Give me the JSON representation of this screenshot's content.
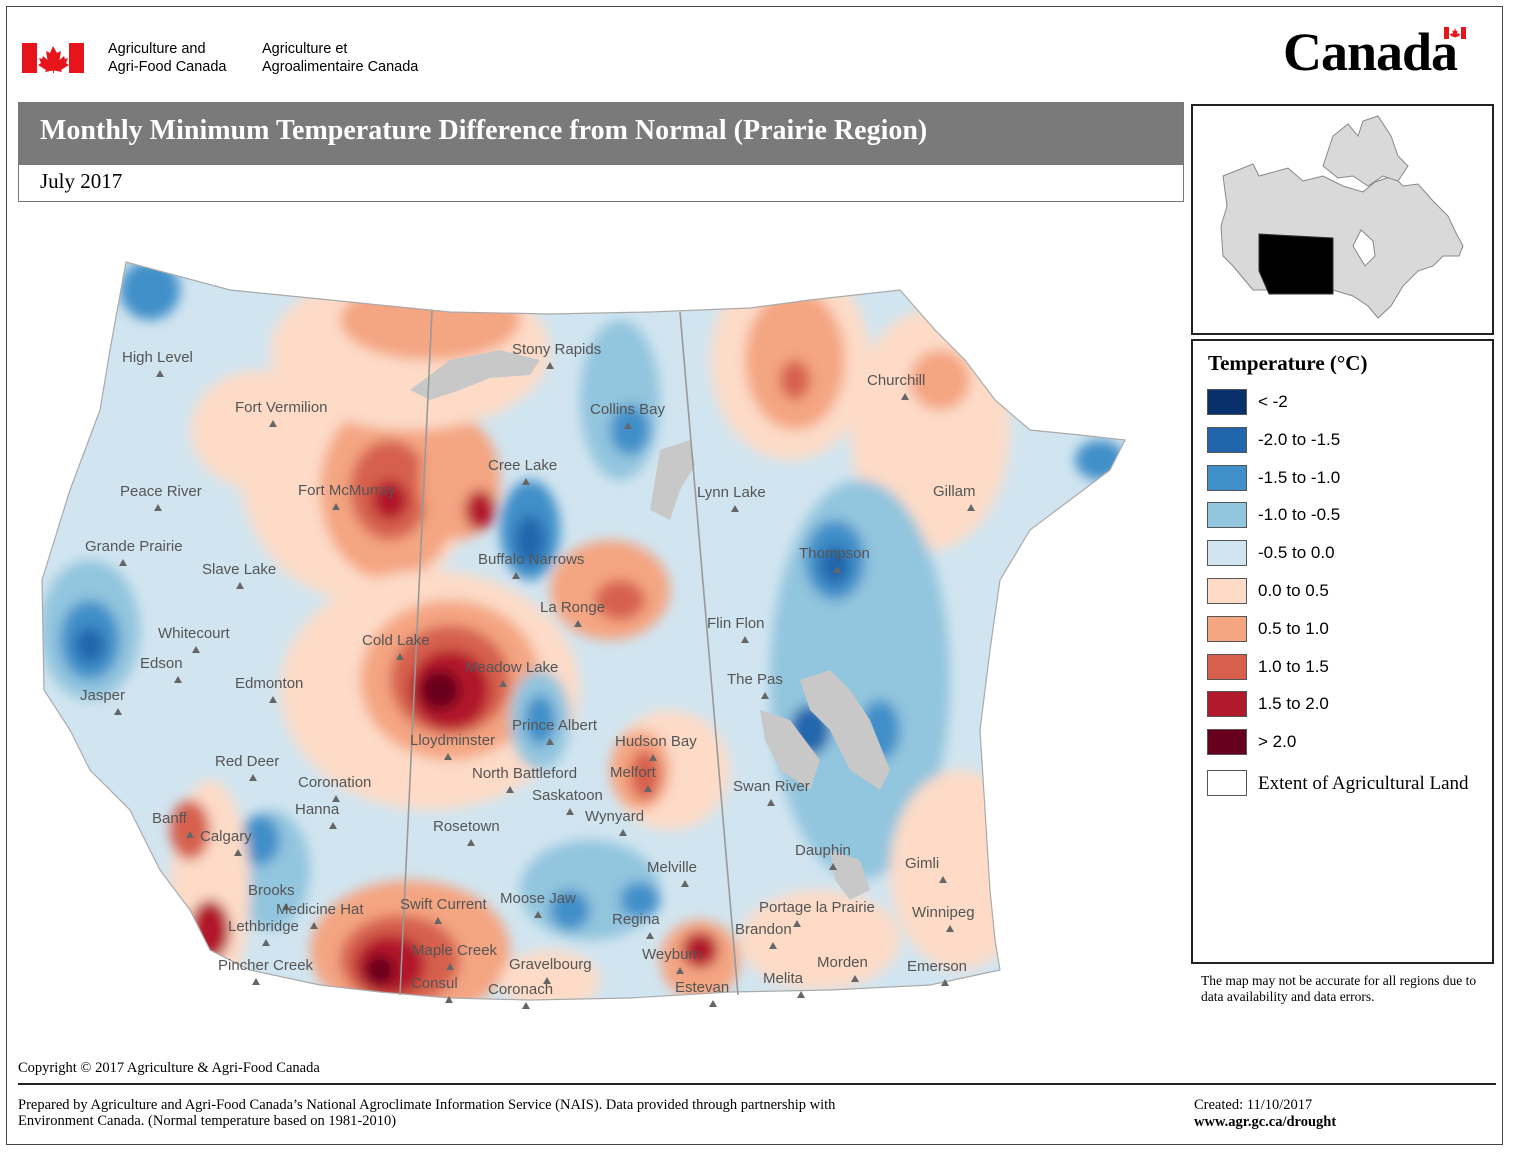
{
  "header": {
    "dept_en_line1": "Agriculture and",
    "dept_en_line2": "Agri-Food Canada",
    "dept_fr_line1": "Agriculture et",
    "dept_fr_line2": "Agroalimentaire Canada",
    "wordmark": "Canada"
  },
  "title": "Monthly Minimum Temperature Difference from Normal (Prairie Region)",
  "subtitle": "July 2017",
  "legend": {
    "title": "Temperature (°C)",
    "items": [
      {
        "label": "< -2",
        "color": "#08306b"
      },
      {
        "label": "-2.0 to -1.5",
        "color": "#2166ac"
      },
      {
        "label": "-1.5 to -1.0",
        "color": "#3f8fc9"
      },
      {
        "label": "-1.0 to -0.5",
        "color": "#92c5de"
      },
      {
        "label": "-0.5 to 0.0",
        "color": "#d1e5f0"
      },
      {
        "label": "0.0 to 0.5",
        "color": "#fddbc7"
      },
      {
        "label": "0.5 to 1.0",
        "color": "#f4a582"
      },
      {
        "label": "1.0 to 1.5",
        "color": "#d6604d"
      },
      {
        "label": "1.5 to 2.0",
        "color": "#b2182b"
      },
      {
        "label": "> 2.0",
        "color": "#67001f"
      },
      {
        "label": "Extent of Agricultural Land",
        "color": "#ffffff"
      }
    ]
  },
  "disclaimer": "The map may not be accurate for all regions due to data availability and data errors.",
  "cities": {
    "high_level": "High Level",
    "fort_vermilion": "Fort Vermilion",
    "peace_river": "Peace River",
    "fort_mcmurray": "Fort McMurray",
    "grande_prairie": "Grande Prairie",
    "slave_lake": "Slave Lake",
    "whitecourt": "Whitecourt",
    "edson": "Edson",
    "jasper": "Jasper",
    "edmonton": "Edmonton",
    "red_deer": "Red Deer",
    "coronation": "Coronation",
    "hanna": "Hanna",
    "banff": "Banff",
    "calgary": "Calgary",
    "brooks": "Brooks",
    "medicine_hat": "Medicine Hat",
    "lethbridge": "Lethbridge",
    "pincher_creek": "Pincher Creek",
    "stony_rapids": "Stony Rapids",
    "collins_bay": "Collins Bay",
    "cree_lake": "Cree Lake",
    "buffalo_narrows": "Buffalo Narrows",
    "la_ronge": "La Ronge",
    "cold_lake": "Cold Lake",
    "meadow_lake": "Meadow Lake",
    "lloydminster": "Lloydminster",
    "north_battleford": "North Battleford",
    "prince_albert": "Prince Albert",
    "hudson_bay": "Hudson Bay",
    "melfort": "Melfort",
    "saskatoon": "Saskatoon",
    "wynyard": "Wynyard",
    "rosetown": "Rosetown",
    "swift_current": "Swift Current",
    "moose_jaw": "Moose Jaw",
    "regina": "Regina",
    "melville": "Melville",
    "maple_creek": "Maple Creek",
    "consul": "Consul",
    "gravelbourg": "Gravelbourg",
    "coronach": "Coronach",
    "weyburn": "Weyburn",
    "estevan": "Estevan",
    "churchill": "Churchill",
    "lynn_lake": "Lynn Lake",
    "gillam": "Gillam",
    "thompson": "Thompson",
    "flin_flon": "Flin Flon",
    "the_pas": "The Pas",
    "swan_river": "Swan River",
    "dauphin": "Dauphin",
    "gimli": "Gimli",
    "portage_la_prairie": "Portage la Prairie",
    "winnipeg": "Winnipeg",
    "brandon": "Brandon",
    "morden": "Morden",
    "melita": "Melita",
    "emerson": "Emerson"
  },
  "footer": {
    "copyright": "Copyright © 2017 Agriculture & Agri-Food Canada",
    "prepared_line1": "Prepared by Agriculture and Agri-Food Canada’s National Agroclimate Information Service (NAIS).   Data provided through partnership with",
    "prepared_line2": "Environment Canada. (Normal temperature based on 1981-2010)",
    "created": "Created:  11/10/2017",
    "url": "www.agr.gc.ca/drought"
  }
}
